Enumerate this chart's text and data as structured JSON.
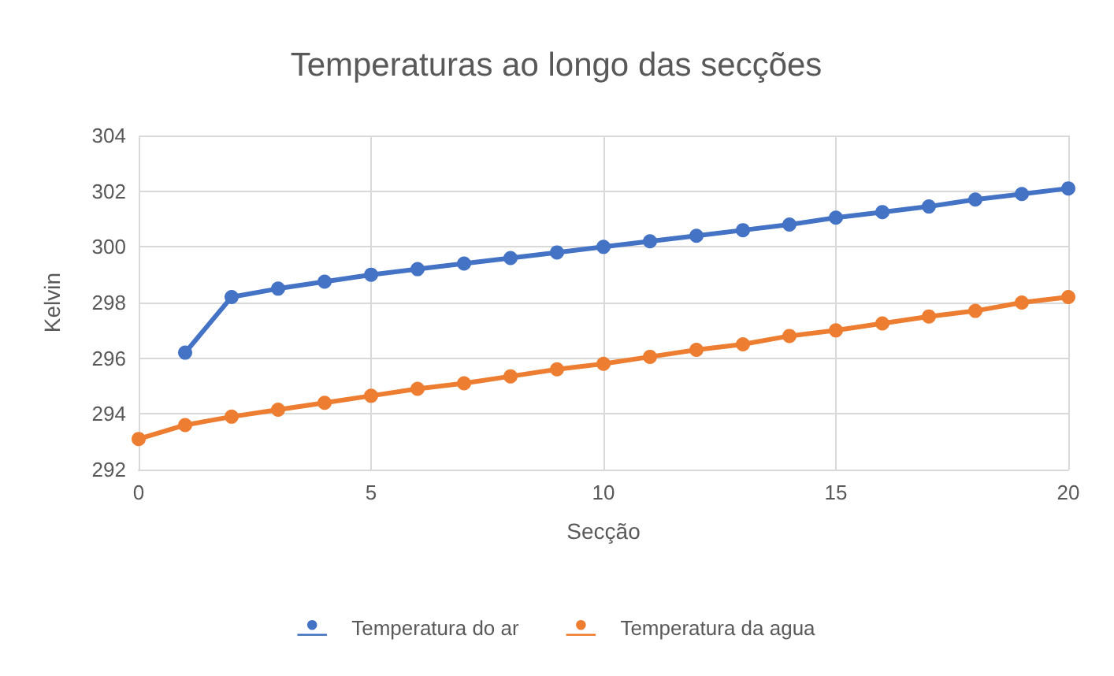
{
  "chart_data": {
    "type": "line",
    "title": "Temperaturas ao longo das secções",
    "xlabel": "Secção",
    "ylabel": "Kelvin",
    "x": [
      0,
      1,
      2,
      3,
      4,
      5,
      6,
      7,
      8,
      9,
      10,
      11,
      12,
      13,
      14,
      15,
      16,
      17,
      18,
      19,
      20
    ],
    "series": [
      {
        "name": "Temperatura do ar",
        "color": "#4472c4",
        "values": [
          null,
          296.2,
          298.2,
          298.5,
          298.75,
          299.0,
          299.2,
          299.4,
          299.6,
          299.8,
          300.0,
          300.2,
          300.4,
          300.6,
          300.8,
          301.05,
          301.25,
          301.45,
          301.7,
          301.9,
          302.1
        ]
      },
      {
        "name": "Temperatura da agua",
        "color": "#ed7d31",
        "values": [
          293.1,
          293.6,
          293.9,
          294.15,
          294.4,
          294.65,
          294.9,
          295.1,
          295.35,
          295.6,
          295.8,
          296.05,
          296.3,
          296.5,
          296.8,
          297.0,
          297.25,
          297.5,
          297.7,
          298.0,
          298.2
        ]
      }
    ],
    "xlim": [
      0,
      20
    ],
    "xticks": [
      0,
      5,
      10,
      15,
      20
    ],
    "ylim": [
      292,
      304
    ],
    "yticks": [
      292,
      294,
      296,
      298,
      300,
      302,
      304
    ],
    "grid": true,
    "legend": "bottom",
    "marker": "circle",
    "line_style": "solid"
  }
}
